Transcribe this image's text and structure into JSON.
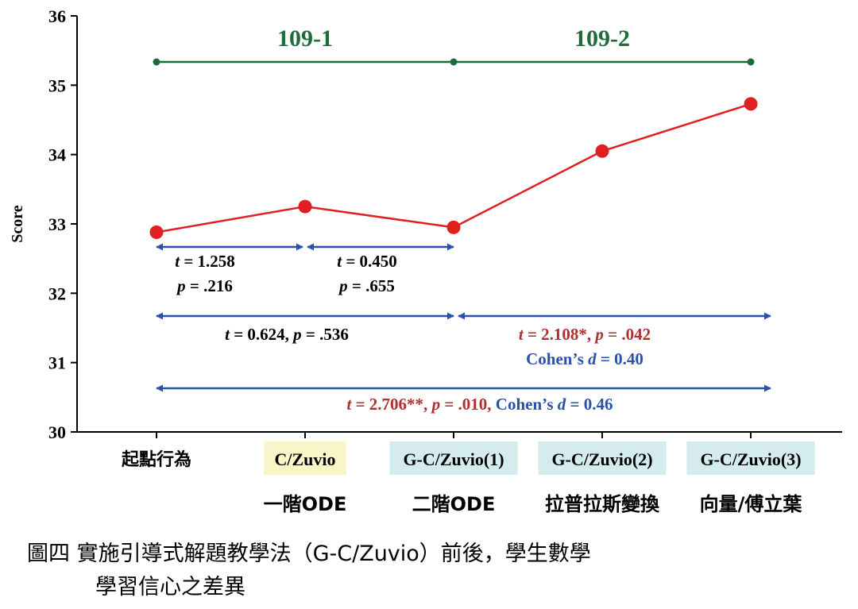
{
  "chart_data": {
    "type": "line",
    "ylabel": "Score",
    "ylim": [
      30,
      36
    ],
    "yticks": [
      "30",
      "31",
      "32",
      "33",
      "34",
      "35",
      "36"
    ],
    "categories": [
      "起點行為",
      "C/Zuvio",
      "G-C/Zuvio(1)",
      "G-C/Zuvio(2)",
      "G-C/Zuvio(3)"
    ],
    "category_highlight": [
      null,
      "#faf5c8",
      "#d4ecee",
      "#d4ecee",
      "#d4ecee"
    ],
    "sublabels": [
      "",
      "一階ODE",
      "二階ODE",
      "拉普拉斯變換",
      "向量/傅立葉"
    ],
    "values": [
      32.88,
      33.25,
      32.95,
      34.05,
      34.73
    ],
    "line_color": "#e02020",
    "periods": [
      {
        "label": "109-1",
        "from": 0,
        "to": 2
      },
      {
        "label": "109-2",
        "from": 2,
        "to": 4
      }
    ],
    "period_color": "#1f6b3a",
    "arrow_color": "#2a52a8",
    "comparisons": [
      {
        "from": 0,
        "to": 1,
        "lines": [
          [
            {
              "t": "t",
              "i": true
            },
            {
              "t": " = 1.258"
            }
          ],
          [
            {
              "t": "p",
              "i": true
            },
            {
              "t": " = .216"
            }
          ]
        ]
      },
      {
        "from": 1,
        "to": 2,
        "lines": [
          [
            {
              "t": "t",
              "i": true
            },
            {
              "t": " =  0.450"
            }
          ],
          [
            {
              "t": "p",
              "i": true
            },
            {
              "t": " = .655"
            }
          ]
        ]
      },
      {
        "from": 0,
        "to": 2,
        "lines": [
          [
            {
              "t": "t",
              "i": true
            },
            {
              "t": " = 0.624, "
            },
            {
              "t": "p",
              "i": true
            },
            {
              "t": " = .536"
            }
          ]
        ]
      },
      {
        "from": 2,
        "to": 4,
        "lines": [
          [
            {
              "t": "t",
              "i": true,
              "c": "#b03030"
            },
            {
              "t": " = 2.108*, ",
              "c": "#b03030"
            },
            {
              "t": "p",
              "i": true,
              "c": "#b03030"
            },
            {
              "t": " = .042",
              "c": "#b03030"
            }
          ],
          [
            {
              "t": "Cohen’s ",
              "c": "#2a52a8"
            },
            {
              "t": "d",
              "i": true,
              "c": "#2a52a8"
            },
            {
              "t": " = 0.40",
              "c": "#2a52a8"
            }
          ]
        ]
      },
      {
        "from": 0,
        "to": 4,
        "lines": [
          [
            {
              "t": "t",
              "i": true,
              "c": "#b03030"
            },
            {
              "t": " = 2.706**, ",
              "c": "#b03030"
            },
            {
              "t": "p",
              "i": true,
              "c": "#b03030"
            },
            {
              "t": " = .010, ",
              "c": "#b03030"
            },
            {
              "t": "Cohen’s ",
              "c": "#2a52a8"
            },
            {
              "t": "d",
              "i": true,
              "c": "#2a52a8"
            },
            {
              "t": " = 0.46",
              "c": "#2a52a8"
            }
          ]
        ]
      }
    ]
  },
  "caption": {
    "line1": "圖四 實施引導式解題教學法（G-C/Zuvio）前後，學生數學",
    "line2": "學習信心之差異"
  }
}
